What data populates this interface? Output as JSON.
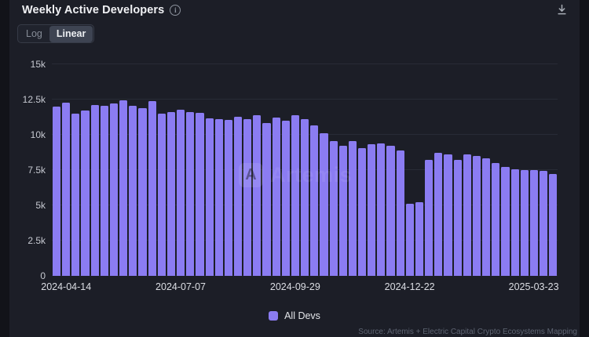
{
  "header": {
    "title": "Weekly Active Developers",
    "info_icon": "info-circle-icon",
    "download_icon": "download-icon"
  },
  "toolbar": {
    "scale_options": [
      {
        "label": "Log",
        "selected": false
      },
      {
        "label": "Linear",
        "selected": true
      }
    ]
  },
  "legend": {
    "items": [
      {
        "label": "All Devs",
        "color": "#8b7cf2"
      }
    ]
  },
  "watermark": {
    "text": "Artemis"
  },
  "footer": {
    "source": "Source: Artemis + Electric Capital Crypto Ecosystems Mapping"
  },
  "colors": {
    "page_background": "#121319",
    "card_background": "#1c1e27",
    "bar": "#8b7cf2",
    "gridline": "#282b36",
    "axis_label": "#c6c9d1"
  },
  "chart_data": {
    "type": "bar",
    "title": "Weekly Active Developers",
    "series_name": "All Devs",
    "bar_color": "#8b7cf2",
    "grid": "horizontal",
    "legend_position": "bottom-center",
    "ylim": [
      0,
      15000
    ],
    "yticks": [
      {
        "value": 0,
        "label": "0"
      },
      {
        "value": 2500,
        "label": "2.5k"
      },
      {
        "value": 5000,
        "label": "5k"
      },
      {
        "value": 7500,
        "label": "7.5k"
      },
      {
        "value": 10000,
        "label": "10k"
      },
      {
        "value": 12500,
        "label": "12.5k"
      },
      {
        "value": 15000,
        "label": "15k"
      }
    ],
    "xticks": [
      {
        "index": 1,
        "label": "2024-04-14"
      },
      {
        "index": 13,
        "label": "2024-07-07"
      },
      {
        "index": 25,
        "label": "2024-09-29"
      },
      {
        "index": 37,
        "label": "2024-12-22"
      },
      {
        "index": 50,
        "label": "2025-03-23"
      }
    ],
    "x": [
      "2024-04-07",
      "2024-04-14",
      "2024-04-21",
      "2024-04-28",
      "2024-05-05",
      "2024-05-12",
      "2024-05-19",
      "2024-05-26",
      "2024-06-02",
      "2024-06-09",
      "2024-06-16",
      "2024-06-23",
      "2024-06-30",
      "2024-07-07",
      "2024-07-14",
      "2024-07-21",
      "2024-07-28",
      "2024-08-04",
      "2024-08-11",
      "2024-08-18",
      "2024-08-25",
      "2024-09-01",
      "2024-09-08",
      "2024-09-15",
      "2024-09-22",
      "2024-09-29",
      "2024-10-06",
      "2024-10-13",
      "2024-10-20",
      "2024-10-27",
      "2024-11-03",
      "2024-11-10",
      "2024-11-17",
      "2024-11-24",
      "2024-12-01",
      "2024-12-08",
      "2024-12-15",
      "2024-12-22",
      "2024-12-29",
      "2025-01-05",
      "2025-01-12",
      "2025-01-19",
      "2025-01-26",
      "2025-02-02",
      "2025-02-09",
      "2025-02-16",
      "2025-02-23",
      "2025-03-02",
      "2025-03-09",
      "2025-03-16",
      "2025-03-23",
      "2025-03-30",
      "2025-04-06"
    ],
    "values": [
      12000,
      12300,
      11500,
      11750,
      12100,
      12050,
      12200,
      12450,
      12050,
      11900,
      12400,
      11500,
      11600,
      11800,
      11600,
      11550,
      11150,
      11100,
      11050,
      11300,
      11100,
      11400,
      10850,
      11200,
      11000,
      11400,
      11100,
      10650,
      10100,
      9550,
      9200,
      9550,
      9050,
      9350,
      9400,
      9250,
      8900,
      5100,
      5200,
      8200,
      8700,
      8600,
      8250,
      8600,
      8500,
      8350,
      8000,
      7700,
      7550,
      7500,
      7500,
      7450,
      7250
    ]
  }
}
